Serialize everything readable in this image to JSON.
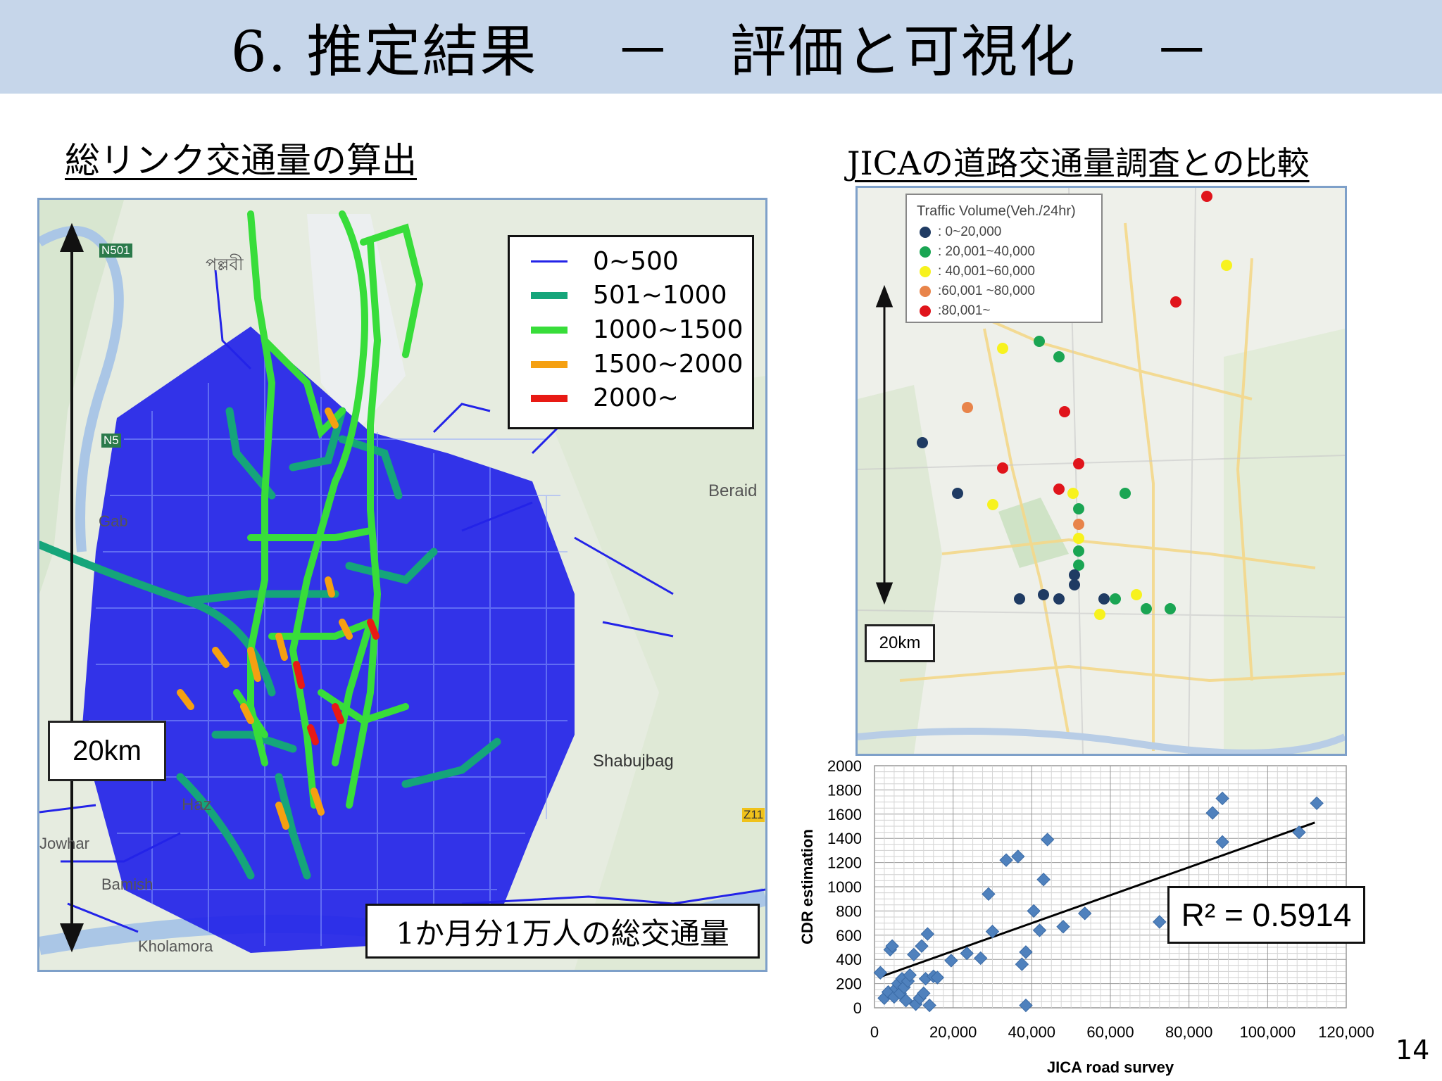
{
  "slide": {
    "title": "6. 推定結果　 －　評価と可視化　 －",
    "page_number": "14"
  },
  "left": {
    "heading": "総リンク交通量の算出",
    "legend": [
      {
        "label": "0~500",
        "color": "#2323e8"
      },
      {
        "label": "501~1000",
        "color": "#15a57a"
      },
      {
        "label": "1000~1500",
        "color": "#38dd3a"
      },
      {
        "label": "1500~2000",
        "color": "#f5a011"
      },
      {
        "label": "2000~",
        "color": "#e81a14"
      }
    ],
    "scale_label": "20km",
    "caption": "1か月分1万人の総交通量",
    "map_labels": {
      "n501": "N501",
      "n5": "N5",
      "pallabi": "পল্লবী",
      "beraid": "Beraid",
      "shabujbag": "Shabujbag",
      "hazari": "Haz",
      "jowhar": "Jowhar",
      "bamish": "Bamish",
      "kholamora": "Kholamora",
      "z11": "Z11",
      "gabtali": "Gab"
    }
  },
  "right": {
    "heading": "JICAの道路交通量調査との比較",
    "legend_title": "Traffic Volume(Veh./24hr)",
    "legend": [
      {
        "label": ": 0~20,000",
        "color": "#1f3b63"
      },
      {
        "label": ": 20,001~40,000",
        "color": "#1aa553"
      },
      {
        "label": ": 40,001~60,000",
        "color": "#f7f21e"
      },
      {
        "label": ":60,001 ~80,000",
        "color": "#e8844a"
      },
      {
        "label": ":80,001~",
        "color": "#e0141b"
      }
    ],
    "scale_label": "20km"
  },
  "chart_data": {
    "type": "scatter",
    "xlabel": "JICA road survey",
    "ylabel": "CDR estimation",
    "xlim": [
      0,
      120000
    ],
    "ylim": [
      0,
      2000
    ],
    "x_ticks": [
      "0",
      "20,000",
      "40,000",
      "60,000",
      "80,000",
      "100,000",
      "120,000"
    ],
    "y_ticks": [
      "0",
      "200",
      "400",
      "600",
      "800",
      "1000",
      "1200",
      "1400",
      "1600",
      "1800",
      "2000"
    ],
    "grid": true,
    "annotation": "R² = 0.5914",
    "trendline": {
      "x": [
        1000,
        112000
      ],
      "y": [
        250,
        1530
      ]
    },
    "points": [
      [
        1500,
        290
      ],
      [
        2500,
        80
      ],
      [
        3500,
        130
      ],
      [
        4000,
        480
      ],
      [
        4500,
        510
      ],
      [
        5000,
        90
      ],
      [
        5500,
        160
      ],
      [
        6000,
        200
      ],
      [
        6500,
        120
      ],
      [
        7000,
        240
      ],
      [
        7500,
        170
      ],
      [
        8000,
        60
      ],
      [
        8500,
        220
      ],
      [
        9000,
        270
      ],
      [
        10000,
        440
      ],
      [
        10500,
        30
      ],
      [
        11500,
        80
      ],
      [
        12000,
        510
      ],
      [
        12500,
        120
      ],
      [
        13000,
        240
      ],
      [
        13500,
        610
      ],
      [
        14000,
        20
      ],
      [
        15000,
        260
      ],
      [
        16000,
        250
      ],
      [
        19500,
        390
      ],
      [
        23500,
        450
      ],
      [
        27000,
        410
      ],
      [
        29000,
        940
      ],
      [
        30000,
        630
      ],
      [
        33500,
        1220
      ],
      [
        36500,
        1250
      ],
      [
        37500,
        360
      ],
      [
        38500,
        460
      ],
      [
        38500,
        20
      ],
      [
        40500,
        800
      ],
      [
        42000,
        640
      ],
      [
        43000,
        1060
      ],
      [
        44000,
        1390
      ],
      [
        48000,
        670
      ],
      [
        53500,
        780
      ],
      [
        72500,
        710
      ],
      [
        86000,
        1610
      ],
      [
        88500,
        1730
      ],
      [
        88500,
        1370
      ],
      [
        108000,
        1450
      ],
      [
        112500,
        1690
      ]
    ]
  }
}
